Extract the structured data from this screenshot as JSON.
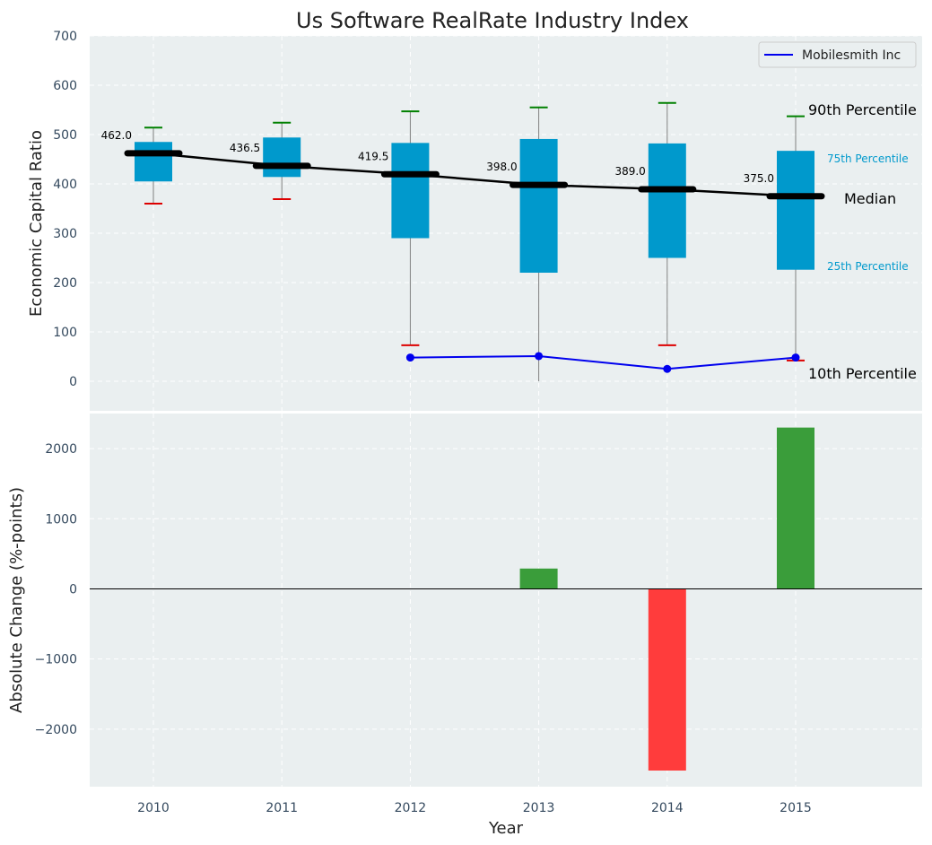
{
  "chart_data": [
    {
      "type": "box",
      "title": "Us Software RealRate Industry Index",
      "ylabel": "Economic Capital Ratio",
      "ylim": [
        -60,
        700
      ],
      "yticks": [
        0,
        100,
        200,
        300,
        400,
        500,
        600,
        700
      ],
      "grid": true,
      "legend_position": "top-right",
      "categories": [
        "2010",
        "2011",
        "2012",
        "2013",
        "2014",
        "2015"
      ],
      "percentiles": {
        "p10": [
          360,
          369,
          73,
          null,
          73,
          42
        ],
        "p25": [
          405,
          414,
          290,
          220,
          250,
          226
        ],
        "median": [
          462.0,
          436.5,
          419.5,
          398.0,
          389.0,
          375.0
        ],
        "p75": [
          485,
          494,
          483,
          491,
          482,
          467
        ],
        "p90": [
          514,
          524,
          547,
          555,
          564,
          537
        ]
      },
      "median_labels": [
        "462.0",
        "436.5",
        "419.5",
        "398.0",
        "389.0",
        "375.0"
      ],
      "annotations": {
        "p90": "90th Percentile",
        "p75": "75th Percentile",
        "median": "Median",
        "p25": "25th Percentile",
        "p10": "10th Percentile"
      },
      "series": [
        {
          "name": "Mobilesmith Inc",
          "x": [
            "2012",
            "2013",
            "2014",
            "2015"
          ],
          "values": [
            48,
            51,
            25,
            48
          ]
        }
      ],
      "colors": {
        "box": "#0099cc",
        "median": "#000000",
        "whisker": "#808080",
        "p90_cap": "#008000",
        "p10_cap": "#dd0000",
        "company_line": "#0000ee",
        "background": "#eaeff0"
      }
    },
    {
      "type": "bar",
      "xlabel": "Year",
      "ylabel": "Absolute Change (%-points)",
      "ylim": [
        -2820,
        2500
      ],
      "yticks": [
        -2000,
        -1000,
        0,
        1000,
        2000
      ],
      "grid": true,
      "categories": [
        "2010",
        "2011",
        "2012",
        "2013",
        "2014",
        "2015"
      ],
      "values": [
        null,
        null,
        null,
        290,
        -2590,
        2300
      ],
      "colors": {
        "positive": "#3a9d3a",
        "negative": "#ff3c3c",
        "zero_line": "#000000"
      }
    }
  ]
}
